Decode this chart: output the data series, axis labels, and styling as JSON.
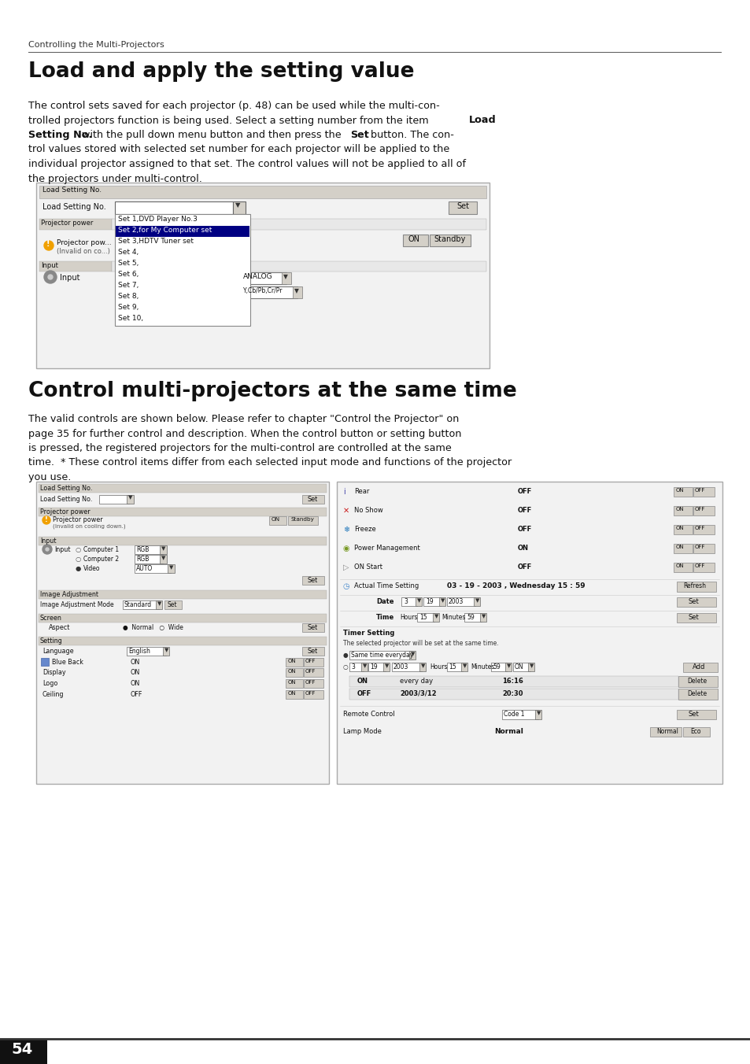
{
  "page_bg": "#ffffff",
  "header_text": "Controlling the Multi-Projectors",
  "title1": "Load and apply the setting value",
  "title2": "Control multi-projectors at the same time",
  "page_number": "54"
}
